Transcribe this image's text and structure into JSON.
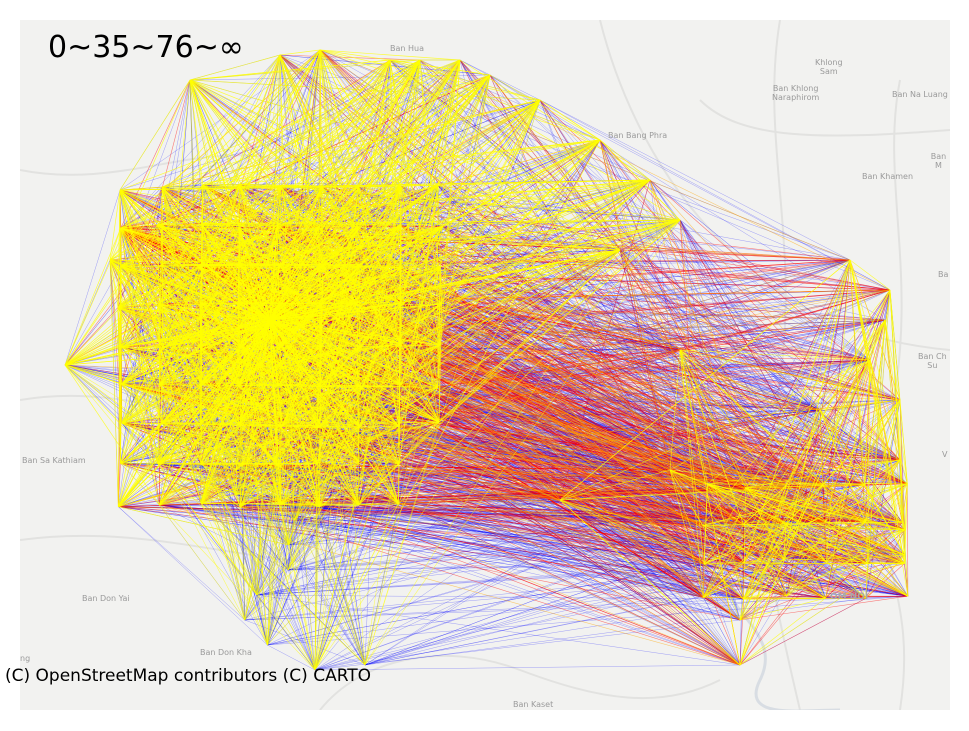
{
  "legend": {
    "thresholds_label": "0~35~76~∞"
  },
  "attribution": "(C) OpenStreetMap contributors (C) CARTO",
  "colors": {
    "low": "#0000ff",
    "mid": "#ff0000",
    "high": "#ffff00",
    "orange": "#ffa500",
    "basemap": "#f2f2f0"
  },
  "place_labels": [
    {
      "id": "ban-hua",
      "text": "Ban Hua"
    },
    {
      "id": "khlong-sam",
      "text": "Khlong\nSam"
    },
    {
      "id": "ban-khlong-naraphirom",
      "text": "Ban Khlong\nNaraphirom"
    },
    {
      "id": "ban-na-luang",
      "text": "Ban Na Luang"
    },
    {
      "id": "ban-bang-phra",
      "text": "Ban Bang Phra"
    },
    {
      "id": "ban-m",
      "text": "Ban M"
    },
    {
      "id": "ban-khamen",
      "text": "Ban Khamen"
    },
    {
      "id": "ba",
      "text": "Ba"
    },
    {
      "id": "ban-ch-su",
      "text": "Ban Ch\nSu"
    },
    {
      "id": "v",
      "text": "V"
    },
    {
      "id": "ban-sa-kathiam",
      "text": "Ban Sa Kathiam"
    },
    {
      "id": "ban-don-yai",
      "text": "Ban Don Yai"
    },
    {
      "id": "om-noi",
      "text": "OM NOI"
    },
    {
      "id": "ban-don-kha",
      "text": "Ban Don Kha"
    },
    {
      "id": "ng",
      "text": "ng"
    },
    {
      "id": "ban-kaset",
      "text": "Ban Kaset"
    }
  ]
}
